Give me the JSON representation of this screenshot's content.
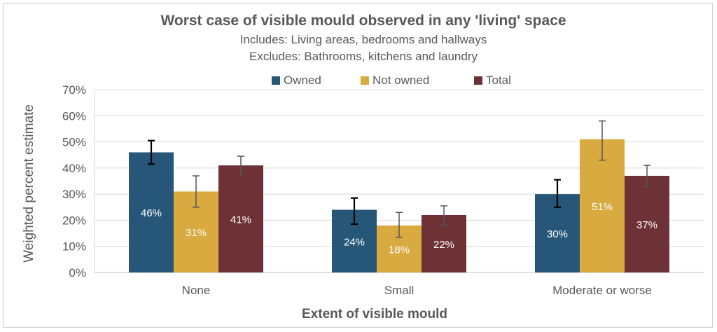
{
  "chart_data": {
    "type": "bar",
    "title": "Worst case of visible mould observed in any 'living' space",
    "subtitle": [
      "Includes: Living areas, bedrooms and hallways",
      "Excludes: Bathrooms,  kitchens and laundry"
    ],
    "xlabel": "Extent of visible mould",
    "ylabel": "Weighted percent estimate",
    "categories": [
      "None",
      "Small",
      "Moderate or worse"
    ],
    "series": [
      {
        "name": "Owned",
        "color": "#265778",
        "values": [
          46,
          24,
          30
        ],
        "labels": [
          "46%",
          "24%",
          "30%"
        ],
        "error_low": [
          41.5,
          18.5,
          25
        ],
        "error_high": [
          50.5,
          28.5,
          35.5
        ],
        "error_color": "#000000"
      },
      {
        "name": "Not owned",
        "color": "#d8aa40",
        "values": [
          31,
          18,
          51
        ],
        "labels": [
          "31%",
          "18%",
          "51%"
        ],
        "error_low": [
          25,
          13.5,
          43
        ],
        "error_high": [
          37,
          23,
          58
        ],
        "error_color": "#555555"
      },
      {
        "name": "Total",
        "color": "#6e3236",
        "values": [
          41,
          22,
          37
        ],
        "labels": [
          "41%",
          "22%",
          "37%"
        ],
        "error_low": [
          37,
          18,
          33
        ],
        "error_high": [
          44.5,
          25.5,
          41
        ],
        "error_color": "#555555"
      }
    ],
    "ylim": [
      0,
      70
    ],
    "yticks": [
      "0%",
      "10%",
      "20%",
      "30%",
      "40%",
      "50%",
      "60%",
      "70%"
    ],
    "grid": true,
    "legend": "top"
  }
}
